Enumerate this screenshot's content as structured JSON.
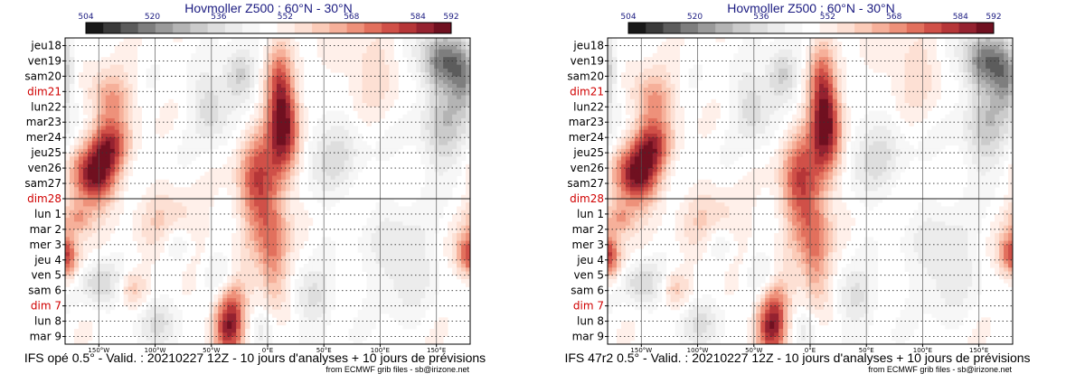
{
  "colorbar": {
    "tick_labels": [
      "504",
      "520",
      "536",
      "552",
      "568",
      "584",
      "592"
    ],
    "tick_values": [
      504,
      520,
      536,
      552,
      568,
      584,
      592
    ],
    "range": [
      504,
      592
    ],
    "colors": [
      "#181818",
      "#3a3a3a",
      "#5c5c5c",
      "#7e7e7e",
      "#9a9a9a",
      "#b4b4b4",
      "#cbcbcb",
      "#dedede",
      "#ececec",
      "#f7f7f7",
      "#ffffff",
      "#fff0ea",
      "#fde0d4",
      "#fbcbb8",
      "#f6b09a",
      "#ee917a",
      "#e2705d",
      "#d05048",
      "#b63638",
      "#952230",
      "#701020"
    ]
  },
  "chart_data": [
    {
      "type": "heatmap",
      "title": "Hovmoller Z500 : 60°N - 30°N",
      "footer": "IFS opé 0.5° - Valid. : 20210227 12Z - 10 jours d'analyses + 10 jours de prévisions",
      "source": "from ECMWF grib files - sb@irizone.net",
      "xlim": [
        -180,
        180
      ],
      "x_tick_values": [
        -150,
        -100,
        -50,
        0,
        50,
        100,
        150
      ],
      "x_tick_labels": [
        "150°W",
        "100°W",
        "50°W",
        "0°E",
        "50°E",
        "100°E",
        "150°E"
      ],
      "y_labels": [
        "jeu18",
        "ven19",
        "sam20",
        "dim21",
        "lun22",
        "mar23",
        "mer24",
        "jeu25",
        "ven26",
        "sam27",
        "dim28",
        "lun 1",
        "mar 2",
        "mer 3",
        "jeu 4",
        "ven 5",
        "sam 6",
        "dim 7",
        "lun 8",
        "mar 9"
      ],
      "y_red": [
        "dim21",
        "dim28",
        "dim 7"
      ],
      "analysis_forecast_boundary": "dim28"
    },
    {
      "type": "heatmap",
      "title": "Hovmoller Z500 : 60°N - 30°N",
      "footer": "IFS 47r2 0.5° - Valid. : 20210227 12Z - 10 jours d'analyses + 10 jours de prévisions",
      "source": "from ECMWF grib files - sb@irizone.net",
      "xlim": [
        -180,
        180
      ],
      "x_tick_values": [
        -150,
        -100,
        -50,
        0,
        50,
        100,
        150
      ],
      "x_tick_labels": [
        "150°W",
        "100°W",
        "50°W",
        "0°E",
        "50°E",
        "100°E",
        "150°E"
      ],
      "y_labels": [
        "jeu18",
        "ven19",
        "sam20",
        "dim21",
        "lun22",
        "mar23",
        "mer24",
        "jeu25",
        "ven26",
        "sam27",
        "dim28",
        "lun 1",
        "mar 2",
        "mer 3",
        "jeu 4",
        "ven 5",
        "sam 6",
        "dim 7",
        "lun 8",
        "mar 9"
      ],
      "y_red": [
        "dim21",
        "dim28",
        "dim 7"
      ],
      "analysis_forecast_boundary": "dim28"
    }
  ],
  "features": [
    {
      "kind": "high",
      "lon": -155,
      "day": 8.5,
      "strength": 4.6,
      "sx": 14,
      "sy": 1.4
    },
    {
      "kind": "high",
      "lon": -140,
      "day": 6.5,
      "strength": 3.0,
      "sx": 12,
      "sy": 1.2
    },
    {
      "kind": "high",
      "lon": -140,
      "day": 3.5,
      "strength": 2.2,
      "sx": 14,
      "sy": 1.3
    },
    {
      "kind": "high",
      "lon": -170,
      "day": 11.3,
      "strength": 2.0,
      "sx": 10,
      "sy": 0.8
    },
    {
      "kind": "high",
      "lon": -178,
      "day": 14.0,
      "strength": 1.6,
      "sx": 8,
      "sy": 1.0
    },
    {
      "kind": "high",
      "lon": -120,
      "day": 15.8,
      "strength": 1.3,
      "sx": 8,
      "sy": 0.8
    },
    {
      "kind": "high",
      "lon": -10,
      "day": 9.0,
      "strength": 3.0,
      "sx": 12,
      "sy": 2.5
    },
    {
      "kind": "high",
      "lon": 5,
      "day": 13.5,
      "strength": 2.4,
      "sx": 10,
      "sy": 3.0
    },
    {
      "kind": "high",
      "lon": 15,
      "day": 5.5,
      "strength": 4.3,
      "sx": 10,
      "sy": 2.3
    },
    {
      "kind": "high",
      "lon": 10,
      "day": 2.5,
      "strength": 2.0,
      "sx": 8,
      "sy": 2.0
    },
    {
      "kind": "high",
      "lon": -35,
      "day": 18.5,
      "strength": 3.6,
      "sx": 10,
      "sy": 1.3
    },
    {
      "kind": "high",
      "lon": -30,
      "day": 16.5,
      "strength": 2.0,
      "sx": 10,
      "sy": 1.5
    },
    {
      "kind": "high",
      "lon": -85,
      "day": 12.0,
      "strength": 1.5,
      "sx": 18,
      "sy": 1.5
    },
    {
      "kind": "high",
      "lon": 178,
      "day": 13.5,
      "strength": 2.2,
      "sx": 8,
      "sy": 1.0
    },
    {
      "kind": "high",
      "lon": 90,
      "day": 1.5,
      "strength": 1.0,
      "sx": 20,
      "sy": 2.0
    },
    {
      "kind": "low",
      "lon": 155,
      "day": 1.0,
      "strength": 3.4,
      "sx": 14,
      "sy": 1.3
    },
    {
      "kind": "low",
      "lon": 175,
      "day": 2.0,
      "strength": 2.0,
      "sx": 8,
      "sy": 1.5
    },
    {
      "kind": "low",
      "lon": 160,
      "day": 5.5,
      "strength": 1.8,
      "sx": 18,
      "sy": 2.0
    },
    {
      "kind": "low",
      "lon": -25,
      "day": 2.0,
      "strength": 1.8,
      "sx": 10,
      "sy": 1.2
    },
    {
      "kind": "low",
      "lon": -50,
      "day": 4.0,
      "strength": 1.6,
      "sx": 12,
      "sy": 1.5
    },
    {
      "kind": "low",
      "lon": 55,
      "day": 7.0,
      "strength": 1.2,
      "sx": 20,
      "sy": 2.0
    },
    {
      "kind": "low",
      "lon": -80,
      "day": 12.8,
      "strength": 1.3,
      "sx": 10,
      "sy": 1.0
    },
    {
      "kind": "low",
      "lon": -150,
      "day": 15.5,
      "strength": 1.5,
      "sx": 12,
      "sy": 1.0
    },
    {
      "kind": "low",
      "lon": -40,
      "day": 15.0,
      "strength": 1.2,
      "sx": 12,
      "sy": 1.0
    },
    {
      "kind": "low",
      "lon": 40,
      "day": 16.5,
      "strength": 1.3,
      "sx": 14,
      "sy": 1.2
    },
    {
      "kind": "low",
      "lon": 120,
      "day": 14.0,
      "strength": 1.4,
      "sx": 18,
      "sy": 2.0
    },
    {
      "kind": "low",
      "lon": -100,
      "day": 18.0,
      "strength": 1.2,
      "sx": 14,
      "sy": 1.0
    },
    {
      "kind": "low",
      "lon": -5,
      "day": 18.5,
      "strength": 1.2,
      "sx": 14,
      "sy": 1.0
    }
  ]
}
